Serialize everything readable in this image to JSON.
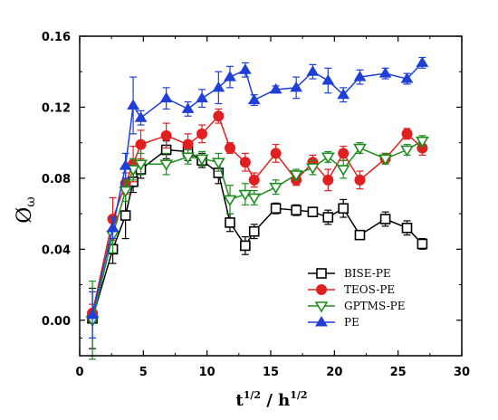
{
  "chart_data": {
    "type": "scatter",
    "xlabel": "t¹ᐟ² / h¹ᐟ²",
    "xlabel_main": "t",
    "xlabel_sup": "1/2",
    "xlabel_sep": " / h",
    "xlabel_sup2": "1/2",
    "ylabel": "Øω",
    "ylabel_main": "Ø",
    "ylabel_sub": "ω",
    "xlim": [
      0,
      30
    ],
    "ylim": [
      -0.02,
      0.16
    ],
    "xticks": [
      0,
      5,
      10,
      15,
      20,
      25,
      30
    ],
    "yticks": [
      0.0,
      0.04,
      0.08,
      0.12,
      0.16
    ],
    "ytick_labels": [
      "0.00",
      "0.04",
      "0.08",
      "0.12",
      "0.16"
    ],
    "legend_position": "lower-right",
    "series": [
      {
        "name": "BISE-PE",
        "color": "#000000",
        "marker": "open-square",
        "x": [
          1.0,
          2.6,
          3.6,
          4.2,
          4.8,
          6.8,
          8.5,
          9.6,
          10.9,
          11.8,
          13.0,
          13.7,
          15.4,
          17.0,
          18.3,
          19.5,
          20.7,
          22.0,
          24.0,
          25.7,
          26.9
        ],
        "y": [
          0.001,
          0.04,
          0.059,
          0.078,
          0.085,
          0.096,
          0.095,
          0.09,
          0.083,
          0.055,
          0.042,
          0.05,
          0.063,
          0.062,
          0.061,
          0.058,
          0.063,
          0.048,
          0.057,
          0.052,
          0.043
        ],
        "err": [
          0.017,
          0.008,
          0.013,
          0.006,
          0.005,
          0.005,
          0.005,
          0.004,
          0.006,
          0.005,
          0.005,
          0.004,
          0.003,
          0.003,
          0.002,
          0.004,
          0.005,
          0.002,
          0.004,
          0.004,
          0.003
        ]
      },
      {
        "name": "TEOS-PE",
        "color": "#e02020",
        "marker": "filled-circle",
        "x": [
          1.0,
          2.6,
          3.6,
          4.2,
          4.8,
          6.8,
          8.5,
          9.6,
          10.9,
          11.8,
          13.0,
          13.7,
          15.4,
          17.0,
          18.3,
          19.5,
          20.7,
          22.0,
          24.0,
          25.7,
          26.9
        ],
        "y": [
          0.004,
          0.057,
          0.077,
          0.088,
          0.099,
          0.104,
          0.099,
          0.105,
          0.115,
          0.097,
          0.089,
          0.079,
          0.094,
          0.079,
          0.089,
          0.079,
          0.094,
          0.079,
          0.091,
          0.105,
          0.097
        ],
        "err": [
          0.005,
          0.012,
          0.006,
          0.01,
          0.008,
          0.007,
          0.006,
          0.005,
          0.004,
          0.003,
          0.005,
          0.004,
          0.005,
          0.003,
          0.004,
          0.006,
          0.004,
          0.005,
          0.003,
          0.003,
          0.004
        ]
      },
      {
        "name": "GPTMS-PE",
        "color": "#1e8c1e",
        "marker": "open-triangle-down",
        "x": [
          1.0,
          2.6,
          3.6,
          4.2,
          4.8,
          6.8,
          8.5,
          9.6,
          10.9,
          11.8,
          13.0,
          13.7,
          15.4,
          17.0,
          18.3,
          19.5,
          20.7,
          22.0,
          24.0,
          25.7,
          26.9
        ],
        "y": [
          0.0,
          0.048,
          0.073,
          0.085,
          0.088,
          0.088,
          0.092,
          0.091,
          0.089,
          0.068,
          0.071,
          0.069,
          0.075,
          0.082,
          0.086,
          0.092,
          0.085,
          0.097,
          0.091,
          0.096,
          0.101
        ],
        "err": [
          0.022,
          0.01,
          0.006,
          0.006,
          0.006,
          0.006,
          0.004,
          0.004,
          0.005,
          0.008,
          0.006,
          0.004,
          0.004,
          0.003,
          0.004,
          0.003,
          0.005,
          0.003,
          0.003,
          0.003,
          0.003
        ]
      },
      {
        "name": "PE",
        "color": "#1f3fd6",
        "marker": "filled-triangle-up",
        "x": [
          1.0,
          2.6,
          3.6,
          4.2,
          4.8,
          6.8,
          8.5,
          9.6,
          10.9,
          11.8,
          13.0,
          13.7,
          15.4,
          17.0,
          18.3,
          19.5,
          20.7,
          22.0,
          24.0,
          25.7,
          26.9
        ],
        "y": [
          0.003,
          0.052,
          0.087,
          0.121,
          0.114,
          0.125,
          0.119,
          0.125,
          0.131,
          0.137,
          0.141,
          0.124,
          0.13,
          0.131,
          0.14,
          0.135,
          0.127,
          0.137,
          0.139,
          0.136,
          0.145
        ],
        "err": [
          0.013,
          0.006,
          0.007,
          0.016,
          0.004,
          0.006,
          0.004,
          0.005,
          0.009,
          0.006,
          0.004,
          0.003,
          0.002,
          0.006,
          0.004,
          0.007,
          0.004,
          0.004,
          0.003,
          0.003,
          0.003
        ]
      }
    ]
  }
}
